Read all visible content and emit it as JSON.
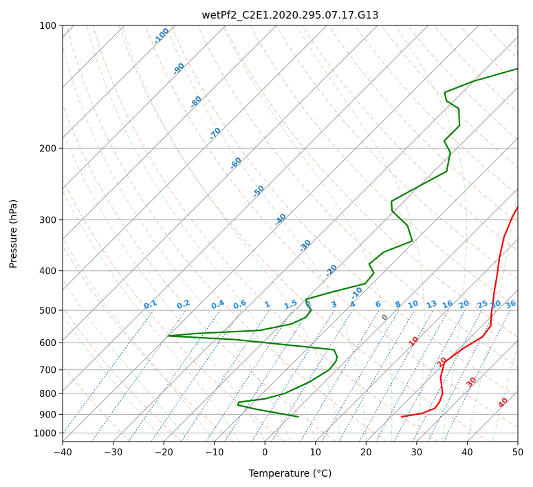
{
  "chart_data": {
    "type": "line",
    "diagram": "skew-T log-P",
    "title": "wetPf2_C2E1.2020.295.07.17.G13",
    "xlabel": "Temperature (°C)",
    "ylabel": "Pressure (hPa)",
    "xlim": [
      -40,
      50
    ],
    "ylim": [
      1050,
      100
    ],
    "yscale": "log",
    "grid": true,
    "x_ticks": [
      -40,
      -30,
      -20,
      -10,
      0,
      10,
      20,
      30,
      40,
      50
    ],
    "y_ticks": [
      100,
      200,
      300,
      400,
      500,
      600,
      700,
      800,
      900,
      1000
    ],
    "series": [
      {
        "role": "temperature",
        "color": "#ff0000",
        "points": [
          [
            22.0,
            913
          ],
          [
            25.5,
            895
          ],
          [
            27.0,
            870
          ],
          [
            26.7,
            840
          ],
          [
            25.6,
            800
          ],
          [
            22.0,
            730
          ],
          [
            19.8,
            670
          ],
          [
            20.8,
            620
          ],
          [
            22.3,
            580
          ],
          [
            21.7,
            545
          ],
          [
            19.8,
            515
          ],
          [
            18.3,
            490
          ],
          [
            15.7,
            450
          ],
          [
            13.0,
            410
          ],
          [
            9.9,
            370
          ],
          [
            6.8,
            330
          ],
          [
            4.5,
            295
          ],
          [
            3.0,
            268
          ],
          [
            1.7,
            243
          ],
          [
            0.5,
            222
          ],
          [
            -0.1,
            205
          ],
          [
            0.4,
            190
          ],
          [
            0.5,
            175
          ],
          [
            0.8,
            160
          ],
          [
            1.4,
            147
          ],
          [
            1.9,
            138
          ],
          [
            2.3,
            130
          ],
          [
            2.0,
            123
          ],
          [
            0.8,
            116
          ],
          [
            -0.2,
            110
          ],
          [
            -0.1,
            104
          ],
          [
            0.5,
            100
          ]
        ]
      },
      {
        "role": "dewpoint",
        "color": "#008000",
        "points": [
          [
            1.8,
            913
          ],
          [
            -8.0,
            875
          ],
          [
            -12.5,
            855
          ],
          [
            -13.0,
            840
          ],
          [
            -8.5,
            825
          ],
          [
            -5.6,
            800
          ],
          [
            -3.0,
            750
          ],
          [
            -1.5,
            700
          ],
          [
            -1.8,
            668
          ],
          [
            -2.5,
            650
          ],
          [
            -4.5,
            625
          ],
          [
            -26.0,
            590
          ],
          [
            -40.0,
            578
          ],
          [
            -35.0,
            570
          ],
          [
            -23.0,
            560
          ],
          [
            -18.0,
            540
          ],
          [
            -16.5,
            520
          ],
          [
            -16.8,
            500
          ],
          [
            -19.0,
            482
          ],
          [
            -20.0,
            470
          ],
          [
            -16.5,
            452
          ],
          [
            -11.4,
            430
          ],
          [
            -11.8,
            405
          ],
          [
            -14.5,
            385
          ],
          [
            -14.0,
            360
          ],
          [
            -10.5,
            338
          ],
          [
            -14.5,
            310
          ],
          [
            -20.5,
            285
          ],
          [
            -22.5,
            270
          ],
          [
            -20.5,
            252
          ],
          [
            -17.5,
            228
          ],
          [
            -20.5,
            205
          ],
          [
            -24.0,
            192
          ],
          [
            -24.0,
            176
          ],
          [
            -27.5,
            160
          ],
          [
            -31.5,
            153
          ],
          [
            -33.5,
            146
          ],
          [
            -30.0,
            137
          ],
          [
            -24.0,
            128
          ],
          [
            -16.5,
            116
          ],
          [
            -9.5,
            105
          ],
          [
            -6.5,
            100
          ]
        ]
      }
    ],
    "annotations": {
      "isotherm_labels": [
        "-100",
        "-90",
        "-80",
        "-70",
        "-60",
        "-50",
        "-40",
        "-30",
        "-20",
        "-10",
        "0",
        "10",
        "20",
        "30",
        "40"
      ],
      "mixing_ratio_labels": [
        "0.1",
        "0.2",
        "0.4",
        "0.6",
        "1",
        "1.5",
        "2",
        "3",
        "4",
        "6",
        "8",
        "10",
        "13",
        "16",
        "20",
        "25",
        "30",
        "36"
      ]
    }
  }
}
